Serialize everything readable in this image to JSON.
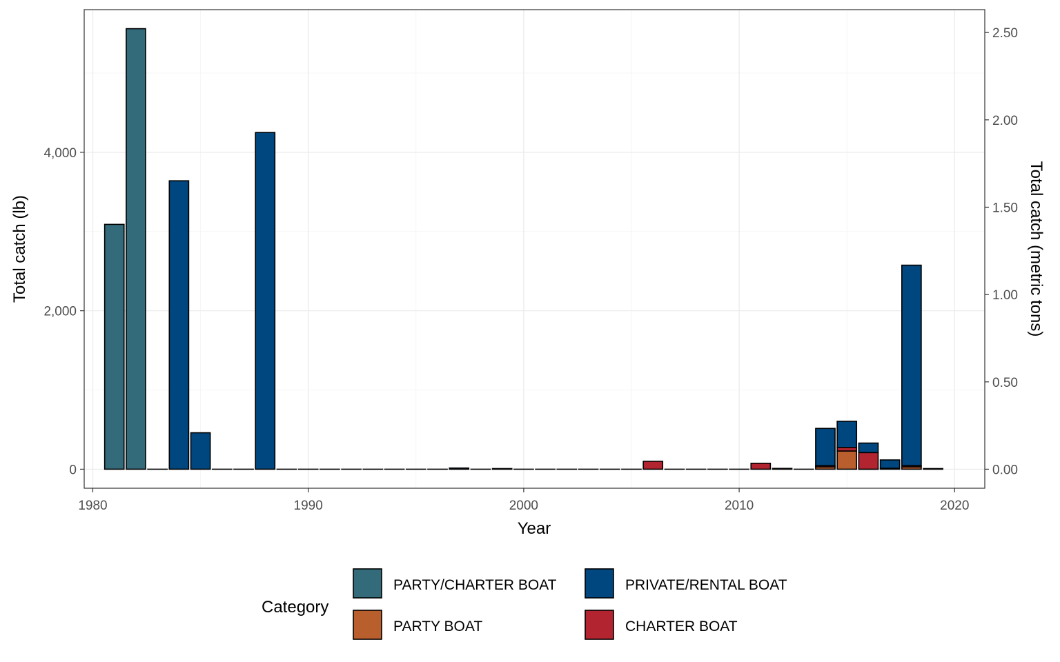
{
  "chart_data": {
    "type": "bar",
    "stacked": true,
    "xlabel": "Year",
    "ylabel_left": "Total catch (lb)",
    "ylabel_right": "Total catch (metric tons)",
    "x_ticks": [
      1980,
      1990,
      2000,
      2010,
      2020
    ],
    "x_tick_labels": [
      "1980",
      "1990",
      "2000",
      "2010",
      "2020"
    ],
    "xlim": [
      1979.6,
      2021.4
    ],
    "ylim_left": [
      -240,
      5800
    ],
    "y_left_ticks": [
      0,
      2000,
      4000
    ],
    "y_left_tick_labels": [
      "0",
      "2,000",
      "4,000"
    ],
    "y_right_ticks": [
      0,
      0.5,
      1.0,
      1.5,
      2.0,
      2.5
    ],
    "y_right_tick_labels": [
      "0.00",
      "0.50",
      "1.00",
      "1.50",
      "2.00",
      "2.50"
    ],
    "lb_per_metric_ton": 2204.62,
    "grid": true,
    "legend": {
      "title": "Category",
      "position": "bottom"
    },
    "series": [
      {
        "name": "PARTY/CHARTER BOAT",
        "color": "#336b7b",
        "points": [
          [
            1981,
            3090
          ],
          [
            1982,
            5560
          ]
        ]
      },
      {
        "name": "PRIVATE/RENTAL BOAT",
        "color": "#00467f",
        "points": [
          [
            1983,
            0
          ],
          [
            1984,
            3640
          ],
          [
            1985,
            460
          ],
          [
            1986,
            0
          ],
          [
            1987,
            0
          ],
          [
            1988,
            4250
          ],
          [
            1989,
            0
          ],
          [
            1990,
            0
          ],
          [
            1991,
            0
          ],
          [
            1992,
            0
          ],
          [
            1993,
            0
          ],
          [
            1994,
            0
          ],
          [
            1995,
            0
          ],
          [
            1996,
            0
          ],
          [
            1997,
            15
          ],
          [
            1998,
            0
          ],
          [
            1999,
            8
          ],
          [
            2000,
            0
          ],
          [
            2001,
            0
          ],
          [
            2002,
            0
          ],
          [
            2003,
            0
          ],
          [
            2004,
            0
          ],
          [
            2005,
            0
          ],
          [
            2007,
            0
          ],
          [
            2008,
            0
          ],
          [
            2009,
            0
          ],
          [
            2010,
            0
          ],
          [
            2012,
            10
          ],
          [
            2013,
            0
          ],
          [
            2014,
            470
          ],
          [
            2015,
            330
          ],
          [
            2016,
            120
          ],
          [
            2017,
            105
          ],
          [
            2018,
            2530
          ],
          [
            2019,
            8
          ]
        ]
      },
      {
        "name": "PARTY BOAT",
        "color": "#b95e2d",
        "points": [
          [
            2014,
            30
          ],
          [
            2015,
            230
          ],
          [
            2016,
            0
          ],
          [
            2018,
            30
          ]
        ]
      },
      {
        "name": "CHARTER BOAT",
        "color": "#b22430",
        "points": [
          [
            2006,
            100
          ],
          [
            2011,
            75
          ],
          [
            2014,
            15
          ],
          [
            2015,
            45
          ],
          [
            2016,
            210
          ],
          [
            2017,
            12
          ],
          [
            2018,
            15
          ]
        ]
      }
    ]
  }
}
